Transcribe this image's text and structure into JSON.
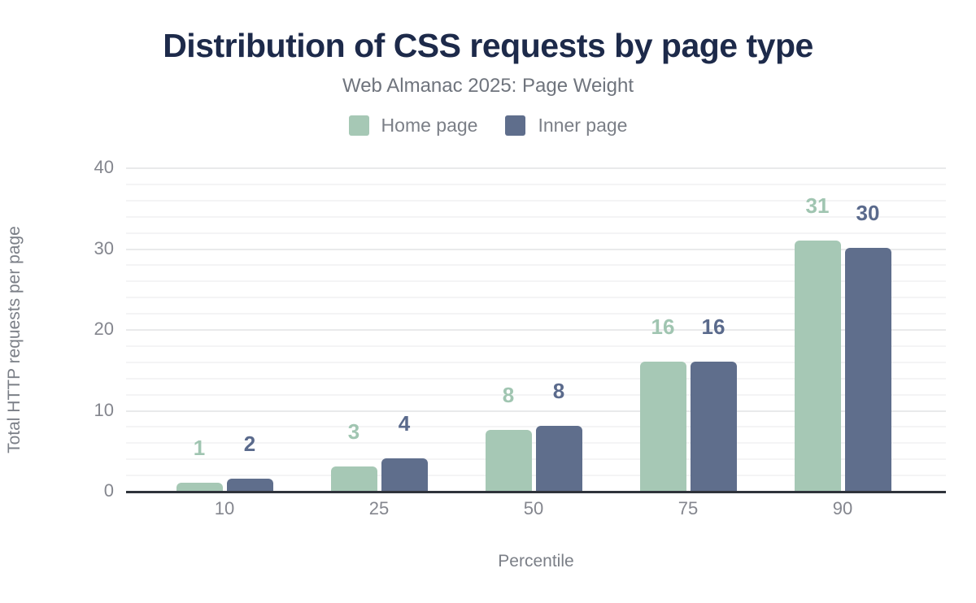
{
  "header": {
    "title": "Distribution of CSS requests by page type",
    "subtitle": "Web Almanac 2025: Page Weight"
  },
  "legend": [
    {
      "label": "Home page",
      "color": "#a6c8b5"
    },
    {
      "label": "Inner page",
      "color": "#5f6e8c"
    }
  ],
  "colors": {
    "title_navy": "#1d2a4a",
    "home_green": "#a6c8b5",
    "inner_slate": "#5f6e8c",
    "inner_label": "#5a6a8c",
    "axis_line": "#2f333b",
    "muted_text": "#84868e"
  },
  "chart_data": {
    "type": "bar",
    "title": "Distribution of CSS requests by page type",
    "subtitle": "Web Almanac 2025: Page Weight",
    "categories": [
      "10",
      "25",
      "50",
      "75",
      "90"
    ],
    "series": [
      {
        "name": "Home page",
        "color": "#a6c8b5",
        "label_color": "#a0c5b1",
        "values": [
          1,
          3,
          8,
          16,
          31
        ],
        "bar_units": [
          1,
          3,
          7.5,
          16,
          31
        ]
      },
      {
        "name": "Inner page",
        "color": "#5f6e8c",
        "label_color": "#5a6a8c",
        "values": [
          2,
          4,
          8,
          16,
          30
        ],
        "bar_units": [
          1.5,
          4,
          8,
          16,
          30
        ]
      }
    ],
    "xlabel": "Percentile",
    "ylabel": "Total HTTP requests per page",
    "ylim": [
      0,
      40
    ],
    "yticks": [
      0,
      10,
      20,
      30,
      40
    ],
    "grid": "horizontal minor lines every 2 units, darker major lines every 10",
    "legend_position": "top-center",
    "data_labels": "bold value above each bar, colored to match its series"
  }
}
